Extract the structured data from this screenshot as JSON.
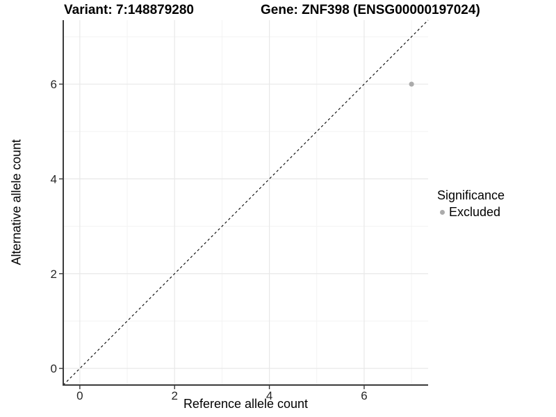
{
  "chart_data": {
    "type": "scatter",
    "titles": {
      "left": "Variant: 7:148879280",
      "right": "Gene: ZNF398 (ENSG00000197024)"
    },
    "xlabel": "Reference allele count",
    "ylabel": "Alternative allele count",
    "xlim": [
      -0.35,
      7.35
    ],
    "ylim": [
      -0.35,
      7.35
    ],
    "x_ticks": [
      0,
      2,
      4,
      6
    ],
    "y_ticks": [
      0,
      2,
      4,
      6
    ],
    "x_minor_ticks": [
      1,
      3,
      5,
      7
    ],
    "y_minor_ticks": [
      1,
      3,
      5,
      7
    ],
    "grid": "major+minor",
    "identity_line": {
      "slope": 1,
      "intercept": 0,
      "style": "dashed",
      "color": "#000000"
    },
    "series": [
      {
        "name": "Excluded",
        "color": "#ababab",
        "points": [
          {
            "x": 7,
            "y": 6
          }
        ]
      }
    ],
    "legend": {
      "title": "Significance",
      "position": "right",
      "entries": [
        {
          "label": "Excluded",
          "color": "#ababab"
        }
      ]
    },
    "style": {
      "grid_major_color": "#e8e8e8",
      "grid_minor_color": "#f3f3f3",
      "axis_line_color": "#3a3a3a",
      "tick_mark_color": "#3a3a3a",
      "tick_label_color": "#262626",
      "background": "#ffffff"
    }
  }
}
